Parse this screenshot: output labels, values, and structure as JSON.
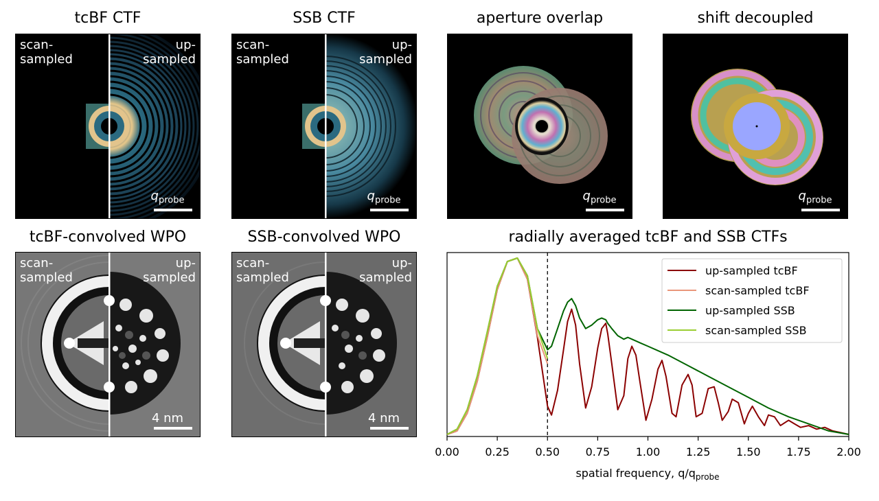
{
  "panels": {
    "tcbf_ctf": {
      "title": "tcBF CTF",
      "left": "scan-\nsampled",
      "right": "up-\nsampled",
      "scalebar": "q",
      "scalebar_sub": "probe"
    },
    "ssb_ctf": {
      "title": "SSB CTF",
      "left": "scan-\nsampled",
      "right": "up-\nsampled",
      "scalebar": "q",
      "scalebar_sub": "probe"
    },
    "aperture_overlap": {
      "title": "aperture overlap",
      "scalebar": "q",
      "scalebar_sub": "probe"
    },
    "shift_decoupled": {
      "title": "shift decoupled",
      "scalebar": "q",
      "scalebar_sub": "probe"
    },
    "tcbf_wpo": {
      "title": "tcBF-convolved WPO",
      "left": "scan-\nsampled",
      "right": "up-\nsampled",
      "scalebar": "4 nm"
    },
    "ssb_wpo": {
      "title": "SSB-convolved WPO",
      "left": "scan-\nsampled",
      "right": "up-\nsampled",
      "scalebar": "4 nm"
    }
  },
  "chart_data": {
    "type": "line",
    "title": "radially averaged tcBF and SSB CTFs",
    "xlabel": "spatial frequency, q/q",
    "xlabel_sub": "probe",
    "xlim": [
      0,
      2.0
    ],
    "ylim": [
      0,
      1.0
    ],
    "xticks": [
      "0.00",
      "0.25",
      "0.50",
      "0.75",
      "1.00",
      "1.25",
      "1.50",
      "1.75",
      "2.00"
    ],
    "vline_x": 0.5,
    "legend_position": "upper-right",
    "series": [
      {
        "name": "up-sampled tcBF",
        "color": "#8b0000",
        "x": [
          0.0,
          0.05,
          0.1,
          0.15,
          0.2,
          0.25,
          0.3,
          0.35,
          0.4,
          0.45,
          0.5,
          0.52,
          0.55,
          0.58,
          0.6,
          0.62,
          0.64,
          0.66,
          0.69,
          0.72,
          0.75,
          0.77,
          0.79,
          0.8,
          0.82,
          0.85,
          0.88,
          0.9,
          0.92,
          0.94,
          0.96,
          0.99,
          1.02,
          1.05,
          1.07,
          1.09,
          1.12,
          1.14,
          1.17,
          1.2,
          1.22,
          1.24,
          1.27,
          1.3,
          1.33,
          1.35,
          1.37,
          1.4,
          1.42,
          1.45,
          1.48,
          1.5,
          1.52,
          1.55,
          1.58,
          1.6,
          1.63,
          1.66,
          1.7,
          1.73,
          1.76,
          1.8,
          1.84,
          1.88,
          1.92,
          1.96,
          2.0
        ],
        "y": [
          0.0,
          0.02,
          0.12,
          0.3,
          0.55,
          0.82,
          0.98,
          1.0,
          0.88,
          0.55,
          0.16,
          0.11,
          0.25,
          0.48,
          0.64,
          0.71,
          0.62,
          0.4,
          0.15,
          0.27,
          0.49,
          0.6,
          0.63,
          0.57,
          0.4,
          0.14,
          0.22,
          0.43,
          0.5,
          0.45,
          0.3,
          0.08,
          0.2,
          0.37,
          0.42,
          0.33,
          0.12,
          0.1,
          0.28,
          0.34,
          0.28,
          0.1,
          0.12,
          0.26,
          0.27,
          0.18,
          0.08,
          0.13,
          0.2,
          0.18,
          0.06,
          0.12,
          0.16,
          0.1,
          0.05,
          0.11,
          0.1,
          0.05,
          0.08,
          0.06,
          0.04,
          0.05,
          0.03,
          0.04,
          0.02,
          0.01,
          0.0
        ]
      },
      {
        "name": "scan-sampled tcBF",
        "color": "#e9967a",
        "x": [
          0.0,
          0.05,
          0.1,
          0.15,
          0.2,
          0.25,
          0.3,
          0.35,
          0.4,
          0.45,
          0.5
        ],
        "y": [
          0.0,
          0.02,
          0.12,
          0.3,
          0.55,
          0.82,
          0.98,
          1.0,
          0.88,
          0.56,
          0.4
        ]
      },
      {
        "name": "up-sampled SSB",
        "color": "#006400",
        "x": [
          0.0,
          0.05,
          0.1,
          0.15,
          0.2,
          0.25,
          0.3,
          0.35,
          0.4,
          0.45,
          0.5,
          0.52,
          0.55,
          0.58,
          0.6,
          0.62,
          0.64,
          0.66,
          0.69,
          0.72,
          0.75,
          0.77,
          0.79,
          0.8,
          0.82,
          0.85,
          0.88,
          0.9,
          0.92,
          0.94,
          0.96,
          1.0,
          1.1,
          1.2,
          1.3,
          1.4,
          1.5,
          1.6,
          1.7,
          1.8,
          1.9,
          2.0
        ],
        "y": [
          0.0,
          0.03,
          0.14,
          0.33,
          0.58,
          0.84,
          0.98,
          1.0,
          0.9,
          0.6,
          0.48,
          0.5,
          0.6,
          0.7,
          0.75,
          0.77,
          0.73,
          0.66,
          0.6,
          0.62,
          0.65,
          0.66,
          0.65,
          0.63,
          0.6,
          0.56,
          0.54,
          0.55,
          0.54,
          0.53,
          0.52,
          0.5,
          0.45,
          0.39,
          0.33,
          0.27,
          0.21,
          0.15,
          0.1,
          0.06,
          0.02,
          0.0
        ]
      },
      {
        "name": "scan-sampled SSB",
        "color": "#9acd32",
        "x": [
          0.0,
          0.05,
          0.1,
          0.15,
          0.2,
          0.25,
          0.3,
          0.35,
          0.4,
          0.45,
          0.5
        ],
        "y": [
          0.0,
          0.03,
          0.14,
          0.33,
          0.58,
          0.84,
          0.98,
          1.0,
          0.9,
          0.6,
          0.43
        ]
      }
    ]
  }
}
